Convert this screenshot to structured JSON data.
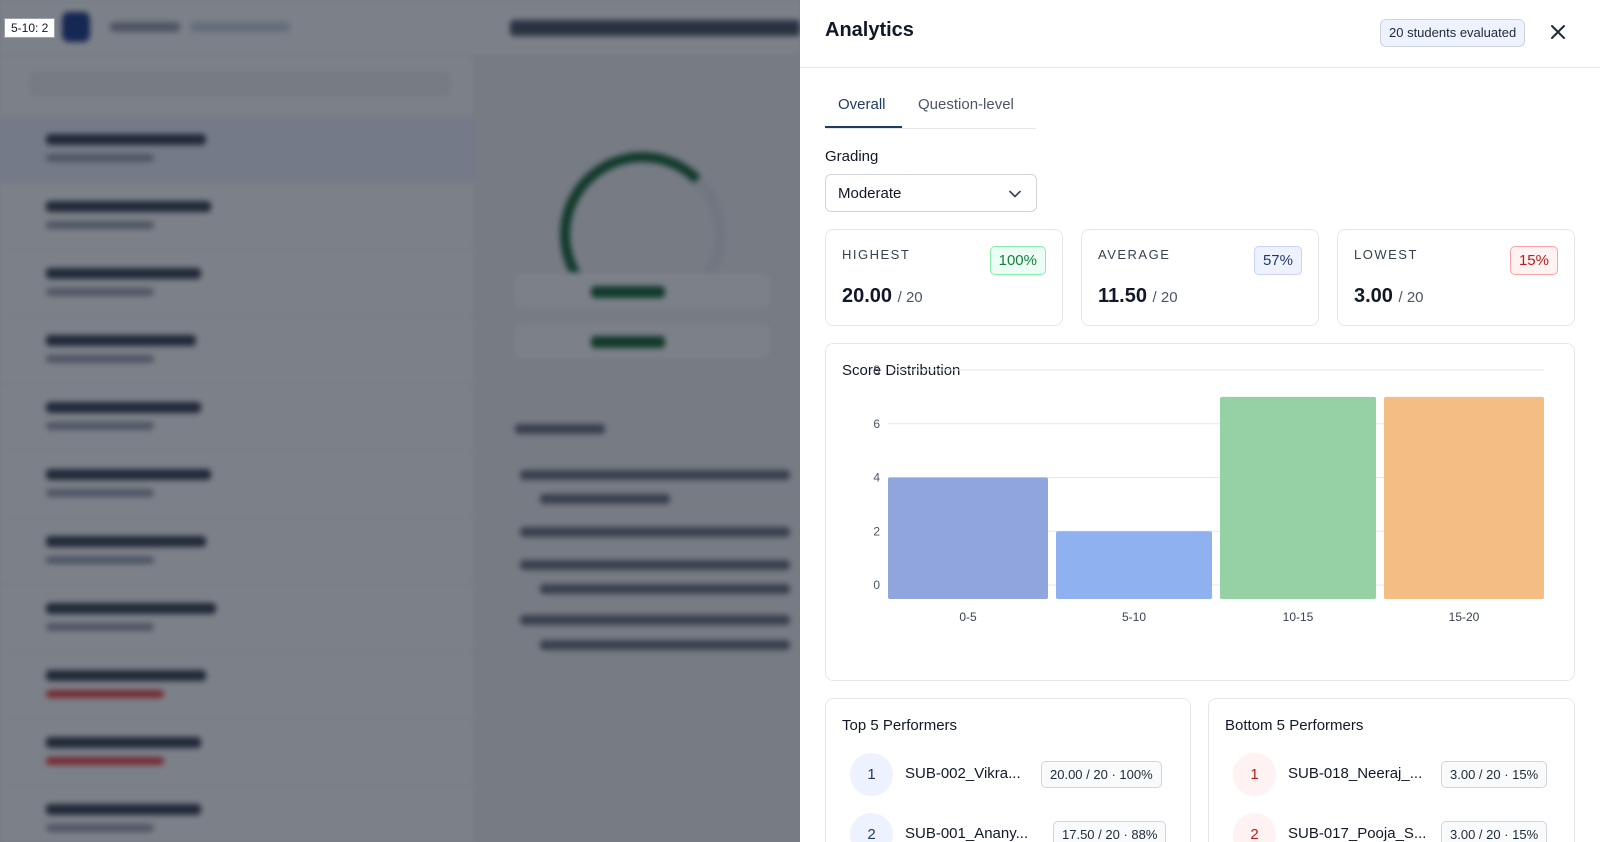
{
  "hover_tip": "5-10: 2",
  "panel": {
    "title": "Analytics",
    "evaluated_badge": "20 students evaluated",
    "close_icon": "close-icon"
  },
  "tabs": [
    {
      "label": "Overall",
      "active": true
    },
    {
      "label": "Question-level",
      "active": false
    }
  ],
  "grading": {
    "label": "Grading",
    "selected": "Moderate"
  },
  "stats": {
    "highest": {
      "label": "HIGHEST",
      "percent": "100%",
      "score": "20.00",
      "total": "/ 20"
    },
    "average": {
      "label": "AVERAGE",
      "percent": "57%",
      "score": "11.50",
      "total": "/ 20"
    },
    "lowest": {
      "label": "LOWEST",
      "percent": "15%",
      "score": "3.00",
      "total": "/ 20"
    }
  },
  "distribution": {
    "title": "Score Distribution"
  },
  "chart_data": {
    "type": "bar",
    "title": "Score Distribution",
    "categories": [
      "0-5",
      "5-10",
      "10-15",
      "15-20"
    ],
    "values": [
      4,
      2,
      7,
      7
    ],
    "colors": [
      "#8fa5dc",
      "#8fb1f0",
      "#95d1a4",
      "#f3bd84"
    ],
    "yticks": [
      0,
      2,
      4,
      6,
      8
    ],
    "ylim": [
      0,
      8
    ],
    "grid": true
  },
  "top_performers": {
    "title": "Top 5 Performers",
    "rows": [
      {
        "rank": "1",
        "name": "SUB-002_Vikra...",
        "score": "20.00 / 20 · 100%"
      },
      {
        "rank": "2",
        "name": "SUB-001_Anany...",
        "score": "17.50 / 20 · 88%"
      }
    ]
  },
  "bottom_performers": {
    "title": "Bottom 5 Performers",
    "rows": [
      {
        "rank": "1",
        "name": "SUB-018_Neeraj_...",
        "score": "3.00 / 20 · 15%"
      },
      {
        "rank": "2",
        "name": "SUB-017_Pooja_S...",
        "score": "3.00 / 20 · 15%"
      }
    ]
  },
  "colors": {
    "accent": "#1e3a5f",
    "success": "#15803d",
    "danger": "#b91c1c"
  }
}
